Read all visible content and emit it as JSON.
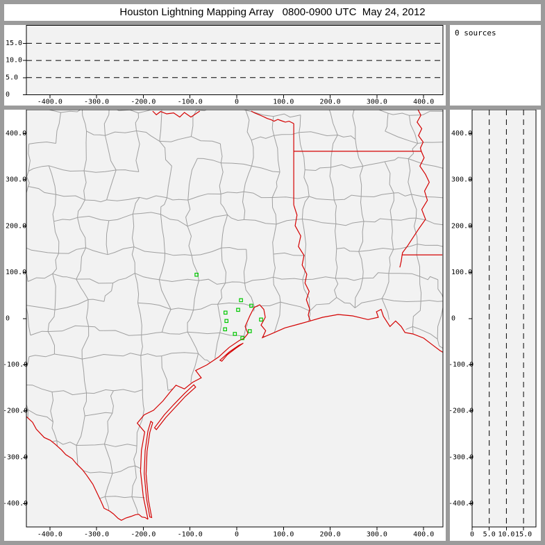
{
  "window": {
    "title": "Houston Lightning Mapping Array   0800-0900 UTC  May 24, 2012"
  },
  "sources_panel": {
    "label": "0 sources"
  },
  "colors": {
    "window_border": "#9b9b9b",
    "panel_bg": "#ffffff",
    "plot_bg": "#f2f2f2",
    "axis": "#000000",
    "county_lines": "#9f9f9f",
    "state_lines": "#d40000",
    "stations": "#00c800"
  },
  "axes": {
    "east_west": {
      "tick_labels": [
        "-400.0",
        "-300.0",
        "-200.0",
        "-100.0",
        "0",
        "100.0",
        "200.0",
        "300.0",
        "400.0"
      ],
      "tick_values": [
        -400,
        -300,
        -200,
        -100,
        0,
        100,
        200,
        300,
        400
      ]
    },
    "north_south": {
      "tick_labels": [
        "400.0",
        "300.0",
        "200.0",
        "100.0",
        "0",
        "-100.0",
        "-200.0",
        "-300.0",
        "-400.0"
      ],
      "tick_values": [
        400,
        300,
        200,
        100,
        0,
        -100,
        -200,
        -300,
        -400
      ]
    },
    "altitude_top": {
      "tick_labels": [
        "15.0",
        "10.0",
        "5.0",
        "0"
      ],
      "tick_values": [
        15,
        10,
        5,
        0
      ]
    },
    "altitude_right": {
      "tick_labels": [
        "0",
        "5.0",
        "10.0",
        "15.0"
      ],
      "tick_values": [
        0,
        5,
        10,
        15
      ]
    }
  },
  "chart_data": [
    {
      "id": "altitude-vs-east-west",
      "type": "scatter",
      "title": "",
      "xlim": [
        -450,
        441
      ],
      "ylim": [
        0,
        20.2
      ],
      "x_ticks": [
        -400,
        -300,
        -200,
        -100,
        0,
        100,
        200,
        300,
        400
      ],
      "y_gridlines_dashed": [
        5,
        10,
        15
      ],
      "y_ticks": [
        0,
        5,
        10,
        15
      ],
      "points": [],
      "note": "0 sources plotted"
    },
    {
      "id": "plan-view-map",
      "type": "scatter",
      "title": "",
      "xlim": [
        -450,
        441
      ],
      "ylim": [
        -450,
        452
      ],
      "x_ticks": [
        -400,
        -300,
        -200,
        -100,
        0,
        100,
        200,
        300,
        400
      ],
      "y_ticks": [
        400,
        300,
        200,
        100,
        0,
        -100,
        -200,
        -300,
        -400
      ],
      "points": [],
      "stations_km": [
        [
          -86,
          95
        ],
        [
          9,
          40
        ],
        [
          31,
          28
        ],
        [
          3,
          19
        ],
        [
          -24,
          13
        ],
        [
          -22,
          -5
        ],
        [
          52,
          -2
        ],
        [
          -25,
          -23
        ],
        [
          28,
          -27
        ],
        [
          -4,
          -33
        ],
        [
          12,
          -42
        ]
      ],
      "note": "green squares = LMA station locations; gray = county lines; red = state borders, rivers, coastline"
    },
    {
      "id": "altitude-vs-north-south",
      "type": "scatter",
      "title": "",
      "xlim": [
        0,
        18.6
      ],
      "ylim": [
        -450,
        452
      ],
      "x_gridlines_dashed": [
        5,
        10,
        15
      ],
      "x_ticks": [
        0,
        5,
        10,
        15
      ],
      "y_ticks": [
        400,
        300,
        200,
        100,
        0,
        -100,
        -200,
        -300,
        -400
      ],
      "points": [],
      "note": "0 sources plotted"
    }
  ],
  "map_geometry": {
    "units": "km east / km south of network center",
    "red_river_west": [
      [
        -180,
        -449
      ],
      [
        -172,
        -441
      ],
      [
        -163,
        -448
      ],
      [
        -150,
        -443
      ],
      [
        -135,
        -445
      ],
      [
        -122,
        -436
      ],
      [
        -112,
        -446
      ],
      [
        -98,
        -436
      ],
      [
        -88,
        -443
      ],
      [
        -79,
        -449
      ]
    ],
    "red_river_east": [
      [
        31,
        -449
      ],
      [
        38,
        -445
      ],
      [
        48,
        -441
      ],
      [
        57,
        -437
      ],
      [
        65,
        -433
      ],
      [
        74,
        -430
      ],
      [
        80,
        -427
      ],
      [
        88,
        -431
      ],
      [
        96,
        -428
      ],
      [
        104,
        -425
      ],
      [
        112,
        -427
      ],
      [
        118,
        -424
      ],
      [
        122,
        -422
      ]
    ],
    "tx_ar_border": [
      [
        122,
        -422
      ],
      [
        122,
        -362
      ],
      [
        122,
        -246
      ]
    ],
    "ar_la_border": [
      [
        122,
        -362
      ],
      [
        395,
        -362
      ]
    ],
    "mississippi_river": [
      [
        388,
        -452
      ],
      [
        394,
        -440
      ],
      [
        386,
        -425
      ],
      [
        396,
        -411
      ],
      [
        389,
        -396
      ],
      [
        399,
        -382
      ],
      [
        393,
        -369
      ],
      [
        395,
        -362
      ],
      [
        401,
        -348
      ],
      [
        392,
        -330
      ],
      [
        404,
        -312
      ],
      [
        412,
        -295
      ],
      [
        402,
        -276
      ],
      [
        408,
        -256
      ],
      [
        396,
        -236
      ],
      [
        404,
        -215
      ],
      [
        390,
        -195
      ],
      [
        377,
        -175
      ],
      [
        366,
        -158
      ],
      [
        355,
        -143
      ],
      [
        354,
        -138
      ],
      [
        352,
        -124
      ],
      [
        349,
        -111
      ]
    ],
    "la_ms_border": [
      [
        354,
        -138
      ],
      [
        440,
        -138
      ]
    ],
    "sabine_river": [
      [
        122,
        -246
      ],
      [
        129,
        -224
      ],
      [
        125,
        -201
      ],
      [
        137,
        -179
      ],
      [
        132,
        -156
      ],
      [
        144,
        -137
      ],
      [
        140,
        -116
      ],
      [
        150,
        -96
      ],
      [
        146,
        -77
      ],
      [
        155,
        -59
      ],
      [
        149,
        -41
      ],
      [
        156,
        -21
      ],
      [
        153,
        -8
      ],
      [
        157,
        4
      ]
    ],
    "rio_grande": [
      [
        -450,
        212
      ],
      [
        -437,
        224
      ],
      [
        -429,
        239
      ],
      [
        -412,
        257
      ],
      [
        -399,
        263
      ],
      [
        -388,
        272
      ],
      [
        -375,
        284
      ],
      [
        -366,
        294
      ],
      [
        -352,
        303
      ],
      [
        -343,
        314
      ],
      [
        -330,
        327
      ],
      [
        -321,
        339
      ],
      [
        -308,
        358
      ],
      [
        -299,
        377
      ],
      [
        -290,
        396
      ],
      [
        -284,
        410
      ],
      [
        -272,
        416
      ],
      [
        -264,
        422
      ],
      [
        -254,
        432
      ],
      [
        -247,
        436
      ],
      [
        -237,
        431
      ],
      [
        -227,
        428
      ],
      [
        -217,
        424
      ],
      [
        -210,
        423
      ],
      [
        -203,
        429
      ],
      [
        -196,
        430
      ],
      [
        -190,
        434
      ]
    ],
    "coastline": [
      [
        -190,
        434
      ],
      [
        -200,
        385
      ],
      [
        -206,
        330
      ],
      [
        -204,
        285
      ],
      [
        -197,
        245
      ],
      [
        -213,
        226
      ],
      [
        -198,
        208
      ],
      [
        -178,
        198
      ],
      [
        -158,
        178
      ],
      [
        -142,
        158
      ],
      [
        -130,
        144
      ],
      [
        -112,
        152
      ],
      [
        -95,
        138
      ],
      [
        -76,
        128
      ],
      [
        -88,
        112
      ],
      [
        -64,
        100
      ],
      [
        -39,
        83
      ],
      [
        -16,
        62
      ],
      [
        6,
        47
      ],
      [
        16,
        42
      ],
      [
        24,
        32
      ],
      [
        18,
        17
      ],
      [
        28,
        -6
      ],
      [
        37,
        -24
      ],
      [
        49,
        -30
      ],
      [
        58,
        -20
      ],
      [
        61,
        -3
      ],
      [
        52,
        14
      ],
      [
        62,
        26
      ],
      [
        55,
        41
      ],
      [
        76,
        32
      ],
      [
        103,
        20
      ],
      [
        132,
        12
      ],
      [
        157,
        5
      ],
      [
        184,
        -3
      ],
      [
        217,
        -9
      ],
      [
        248,
        -6
      ],
      [
        281,
        2
      ],
      [
        303,
        -3
      ],
      [
        299,
        -15
      ],
      [
        309,
        -20
      ],
      [
        314,
        -5
      ],
      [
        328,
        17
      ],
      [
        340,
        5
      ],
      [
        352,
        17
      ],
      [
        360,
        30
      ],
      [
        377,
        33
      ],
      [
        400,
        42
      ],
      [
        418,
        56
      ],
      [
        435,
        69
      ],
      [
        447,
        76
      ]
    ],
    "barrier_islands": [
      [
        [
          -186,
          429
        ],
        [
          -193,
          390
        ],
        [
          -198,
          335
        ],
        [
          -196,
          285
        ],
        [
          -190,
          243
        ],
        [
          -184,
          222
        ],
        [
          -180,
          225
        ],
        [
          -186,
          246
        ],
        [
          -192,
          287
        ],
        [
          -194,
          336
        ],
        [
          -189,
          392
        ],
        [
          -182,
          430
        ]
      ],
      [
        [
          -176,
          236
        ],
        [
          -155,
          208
        ],
        [
          -135,
          186
        ],
        [
          -112,
          162
        ],
        [
          -92,
          143
        ],
        [
          -88,
          148
        ],
        [
          -110,
          168
        ],
        [
          -132,
          192
        ],
        [
          -152,
          214
        ],
        [
          -172,
          240
        ]
      ],
      [
        [
          -36,
          90
        ],
        [
          -16,
          72
        ],
        [
          4,
          58
        ],
        [
          14,
          53
        ],
        [
          -2,
          64
        ],
        [
          -20,
          78
        ],
        [
          -32,
          92
        ]
      ]
    ],
    "coast_clip": [
      [
        -190,
        434
      ],
      [
        -206,
        330
      ],
      [
        -197,
        245
      ],
      [
        -198,
        208
      ],
      [
        -158,
        178
      ],
      [
        -130,
        144
      ],
      [
        -95,
        138
      ],
      [
        -64,
        100
      ],
      [
        -16,
        62
      ],
      [
        16,
        42
      ],
      [
        28,
        -6
      ],
      [
        49,
        -30
      ],
      [
        61,
        -3
      ],
      [
        55,
        41
      ],
      [
        103,
        20
      ],
      [
        157,
        5
      ],
      [
        217,
        -9
      ],
      [
        281,
        2
      ],
      [
        314,
        -5
      ],
      [
        352,
        17
      ],
      [
        377,
        33
      ],
      [
        418,
        56
      ],
      [
        447,
        76
      ]
    ]
  }
}
